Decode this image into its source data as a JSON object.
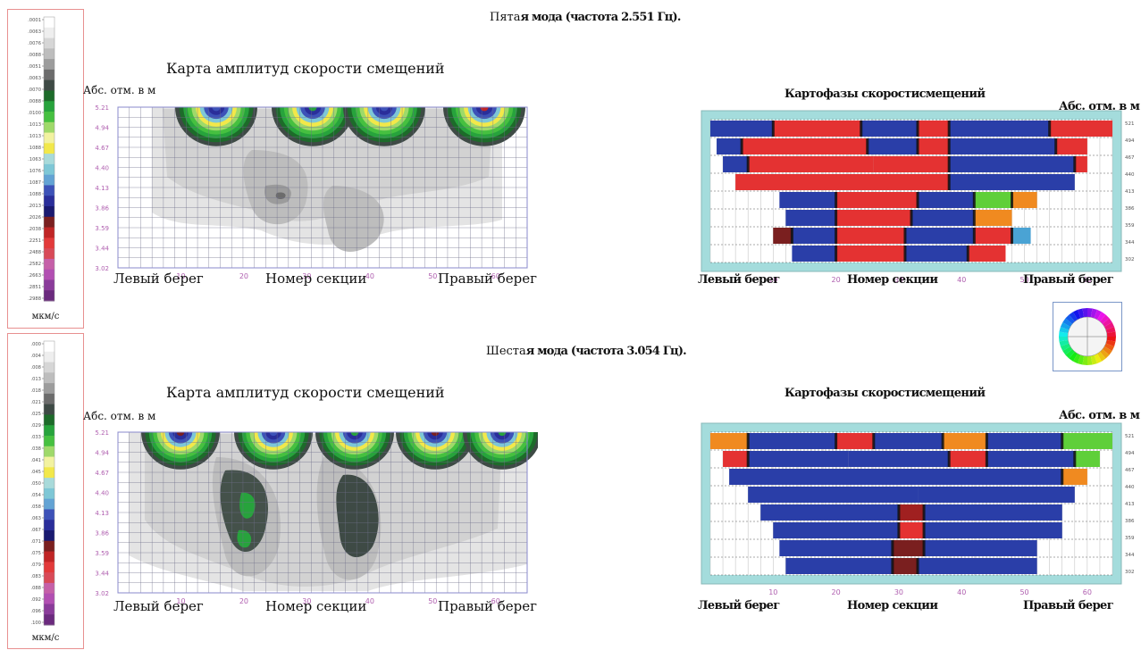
{
  "legend_colors": [
    "#ffffff",
    "#eeeeee",
    "#d6d6d6",
    "#bdbdbd",
    "#9c9c9c",
    "#6c6c6c",
    "#3e4a45",
    "#1d6b2a",
    "#27a33c",
    "#46c040",
    "#9fd96a",
    "#f2f2a0",
    "#f2e84a",
    "#a8dada",
    "#7ec7d6",
    "#63a3d4",
    "#3d52b8",
    "#2a2e9a",
    "#1a1a70",
    "#7a1f1f",
    "#c02525",
    "#e23a3a",
    "#d84a58",
    "#c560a8",
    "#b24fb2",
    "#8a3b9a",
    "#6b2a7e"
  ],
  "panels": [
    {
      "mode_title_prefix": "Пята",
      "mode_title_rest": "я мода (частота 2.551 Гц).",
      "legend": {
        "ticks": [
          ".0001",
          ".0063",
          ".0076",
          ".0088",
          ".0051",
          ".0063",
          ".0070",
          ".0088",
          ".0100",
          ".1013",
          ".1013",
          ".1088",
          ".1063",
          ".1076",
          ".1087",
          ".1088",
          ".2013",
          ".2026",
          ".2038",
          ".2251",
          ".2488",
          ".2582",
          ".2663",
          ".2851",
          ".2988"
        ],
        "unit": "мкм/с"
      },
      "contour": {
        "title": "Карта амплитуд скорости смещений",
        "ylabel": "Абс. отм. в м",
        "y_ticks": [
          "5.21",
          "4.94",
          "4.67",
          "4.40",
          "4.13",
          "3.86",
          "3.59",
          "3.44",
          "3.02"
        ],
        "x_ticks": [
          "10",
          "20",
          "30",
          "40",
          "50",
          "60"
        ],
        "left_label": "Левый берег",
        "center_label": "Номер секции",
        "right_label": "Правый берег"
      },
      "phase": {
        "title": "Картофазы скоростисмещений",
        "ylabel": "Абс. отм. в м",
        "x_ticks": [
          "10",
          "20",
          "30",
          "40",
          "50",
          "60"
        ],
        "y_ticks": [
          "521",
          "494",
          "467",
          "440",
          "413",
          "386",
          "359",
          "344",
          "302"
        ],
        "left_label": "Левый берег",
        "center_label": "Номер секции",
        "right_label": "Правый берег"
      }
    },
    {
      "mode_title_prefix": "Шеста",
      "mode_title_rest": "я мода (частота 3.054 Гц).",
      "legend": {
        "ticks": [
          ".000",
          ".004",
          ".008",
          ".013",
          ".018",
          ".021",
          ".025",
          ".029",
          ".033",
          ".038",
          ".041",
          ".045",
          ".050",
          ".054",
          ".058",
          ".063",
          ".067",
          ".071",
          ".075",
          ".079",
          ".083",
          ".088",
          ".092",
          ".096",
          ".100"
        ],
        "unit": "мкм/с"
      },
      "contour": {
        "title": "Карта амплитуд скорости смещений",
        "ylabel": "Абс. отм. в м",
        "y_ticks": [
          "5.21",
          "4.94",
          "4.67",
          "4.40",
          "4.13",
          "3.86",
          "3.59",
          "3.44",
          "3.02"
        ],
        "x_ticks": [
          "10",
          "20",
          "30",
          "40",
          "50",
          "60"
        ],
        "left_label": "Левый берег",
        "center_label": "Номер секции",
        "right_label": "Правый берег"
      },
      "phase": {
        "title": "Картофазы скоростисмещений",
        "ylabel": "Абс. отм. в м",
        "x_ticks": [
          "10",
          "20",
          "30",
          "40",
          "50",
          "60"
        ],
        "y_ticks": [
          "521",
          "494",
          "467",
          "440",
          "413",
          "386",
          "359",
          "344",
          "302"
        ],
        "left_label": "Левый берег",
        "center_label": "Номер секции",
        "right_label": "Правый берег"
      }
    }
  ],
  "chart_data": [
    {
      "type": "heatmap",
      "title": "Карта амплитуд скорости смещений",
      "subtitle": "Пятая мода (частота 2.551 Гц).",
      "xlabel": "Номер секции",
      "ylabel": "Абс. отм. в м",
      "xlim": [
        0,
        65
      ],
      "y_ticks": [
        5.21,
        4.94,
        4.67,
        4.4,
        4.13,
        3.86,
        3.59,
        3.44,
        3.02
      ]
    },
    {
      "type": "heatmap",
      "title": "Картофазы скоростисмещений",
      "subtitle": "Пятая мода (частота 2.551 Гц).",
      "xlabel": "Номер секции",
      "xlim": [
        0,
        65
      ]
    },
    {
      "type": "heatmap",
      "title": "Карта амплитуд скорости смещений",
      "subtitle": "Шестая мода (частота 3.054 Гц).",
      "xlabel": "Номер секции",
      "ylabel": "Абс. отм. в м",
      "xlim": [
        0,
        65
      ],
      "y_ticks": [
        5.21,
        4.94,
        4.67,
        4.4,
        4.13,
        3.86,
        3.59,
        3.44,
        3.02
      ]
    },
    {
      "type": "heatmap",
      "title": "Картофазы скоростисмещений",
      "subtitle": "Шестая мода (частота 3.054 Гц).",
      "xlabel": "Номер секции",
      "xlim": [
        0,
        65
      ]
    }
  ]
}
